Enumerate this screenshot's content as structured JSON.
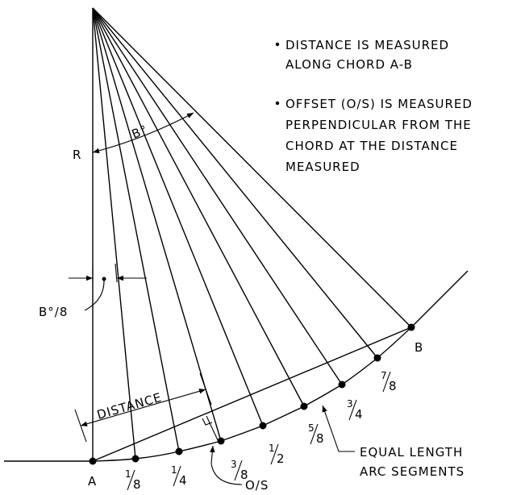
{
  "labels": {
    "radius": "R",
    "angle": "B°",
    "angle_fraction": "B°/8",
    "distance": "DISTANCE",
    "offset": "O/S",
    "point_a": "A",
    "point_b": "B"
  },
  "fractions": [
    {
      "num": "1",
      "den": "8"
    },
    {
      "num": "1",
      "den": "4"
    },
    {
      "num": "3",
      "den": "8"
    },
    {
      "num": "1",
      "den": "2"
    },
    {
      "num": "5",
      "den": "8"
    },
    {
      "num": "3",
      "den": "4"
    },
    {
      "num": "7",
      "den": "8"
    }
  ],
  "notes": [
    {
      "line1": "DISTANCE IS MEASURED",
      "line2": "ALONG CHORD A-B"
    },
    {
      "line1": "OFFSET (O/S) IS MEASURED",
      "line2": "PERPENDICULAR FROM THE",
      "line3": "CHORD AT THE DISTANCE",
      "line4": "MEASURED"
    }
  ],
  "callout": {
    "line1": "EQUAL LENGTH",
    "line2": "ARC SEGMENTS"
  }
}
